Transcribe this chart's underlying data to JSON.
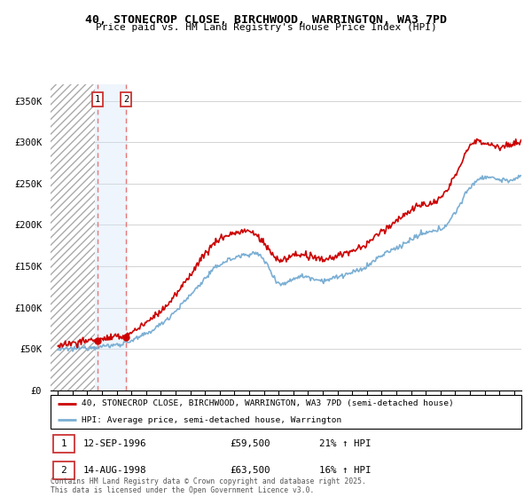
{
  "title1": "40, STONECROP CLOSE, BIRCHWOOD, WARRINGTON, WA3 7PD",
  "title2": "Price paid vs. HM Land Registry's House Price Index (HPI)",
  "ylabel_ticks": [
    "£0",
    "£50K",
    "£100K",
    "£150K",
    "£200K",
    "£250K",
    "£300K",
    "£350K"
  ],
  "ytick_vals": [
    0,
    50000,
    100000,
    150000,
    200000,
    250000,
    300000,
    350000
  ],
  "ylim": [
    0,
    370000
  ],
  "xlim_start": 1993.5,
  "xlim_end": 2025.5,
  "legend_line1": "40, STONECROP CLOSE, BIRCHWOOD, WARRINGTON, WA3 7PD (semi-detached house)",
  "legend_line2": "HPI: Average price, semi-detached house, Warrington",
  "transaction1_date": 1996.7,
  "transaction1_price": 59500,
  "transaction2_date": 1998.62,
  "transaction2_price": 63500,
  "footer": "Contains HM Land Registry data © Crown copyright and database right 2025.\nThis data is licensed under the Open Government Licence v3.0.",
  "line_color_red": "#cc0000",
  "line_color_blue": "#7bafd4",
  "marker_color": "#cc0000",
  "dashed_line_color": "#e87878",
  "box_color": "#cc3333",
  "hatch_color": "#c8c8c8",
  "shade_color": "#d0e4f7"
}
